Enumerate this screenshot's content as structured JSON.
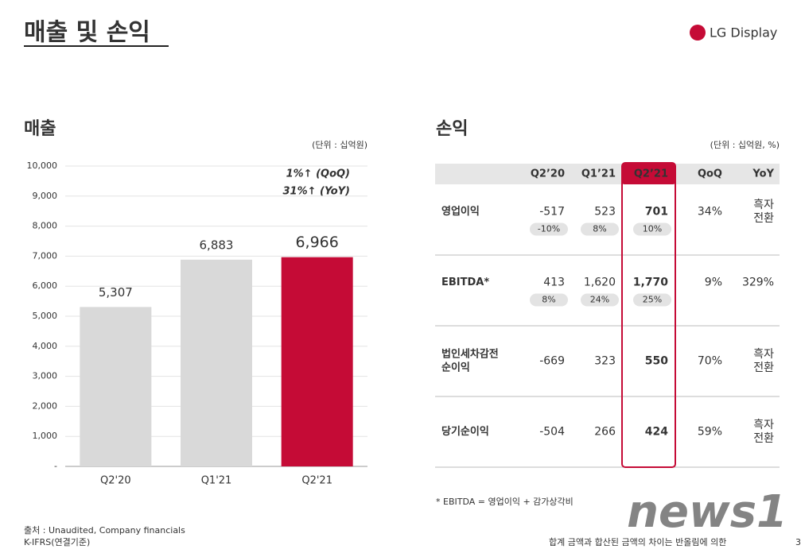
{
  "header": {
    "title": "매출 및 손익",
    "logo": "LG Display"
  },
  "chart_data": {
    "type": "bar",
    "title": "매출",
    "unit_note": "(단위 : 십억원)",
    "categories": [
      "Q2'20",
      "Q1'21",
      "Q2'21"
    ],
    "values": [
      5307,
      6883,
      6966
    ],
    "value_labels": [
      "5,307",
      "6,883",
      "6,966"
    ],
    "colors": [
      "#d9d9d9",
      "#d9d9d9",
      "#c50b36"
    ],
    "ylim": [
      0,
      10000
    ],
    "yticks": [
      {
        "value": 0,
        "label": "-"
      },
      {
        "value": 1000,
        "label": "1,000"
      },
      {
        "value": 2000,
        "label": "2,000"
      },
      {
        "value": 3000,
        "label": "3,000"
      },
      {
        "value": 4000,
        "label": "4,000"
      },
      {
        "value": 5000,
        "label": "5,000"
      },
      {
        "value": 6000,
        "label": "6,000"
      },
      {
        "value": 7000,
        "label": "7,000"
      },
      {
        "value": 8000,
        "label": "8,000"
      },
      {
        "value": 9000,
        "label": "9,000"
      },
      {
        "value": 10000,
        "label": "10,000"
      }
    ],
    "grid": true,
    "annotations": [
      "1%↑ (QoQ)",
      "31%↑ (YoY)"
    ]
  },
  "table": {
    "title": "손익",
    "unit_note": "(단위 : 십억원, %)",
    "columns": [
      "Q2’20",
      "Q1’21",
      "Q2’21",
      "QoQ",
      "YoY"
    ],
    "rows": [
      {
        "label": [
          "영업이익"
        ],
        "values": [
          "-517",
          "523",
          "701"
        ],
        "margins": [
          "-10%",
          "8%",
          "10%"
        ],
        "qoq": "34%",
        "yoy": [
          "흑자",
          "전환"
        ]
      },
      {
        "label": [
          "EBITDA*"
        ],
        "values": [
          "413",
          "1,620",
          "1,770"
        ],
        "margins": [
          "8%",
          "24%",
          "25%"
        ],
        "qoq": "9%",
        "yoy": [
          "329%"
        ]
      },
      {
        "label": [
          "법인세차감전",
          "순이익"
        ],
        "values": [
          "-669",
          "323",
          "550"
        ],
        "qoq": "70%",
        "yoy": [
          "흑자",
          "전환"
        ]
      },
      {
        "label": [
          "당기순이익"
        ],
        "values": [
          "-504",
          "266",
          "424"
        ],
        "qoq": "59%",
        "yoy": [
          "흑자",
          "전환"
        ]
      }
    ],
    "footnote": "* EBITDA = 영업이익 + 감가상각비"
  },
  "source": [
    "출처 : Unaudited, Company financials",
    "K-IFRS(연결기준)"
  ],
  "bottom_note": "합계 금액과 합산된 금액의 차이는 반올림에 의한",
  "page_number": "3",
  "watermark": "news1"
}
